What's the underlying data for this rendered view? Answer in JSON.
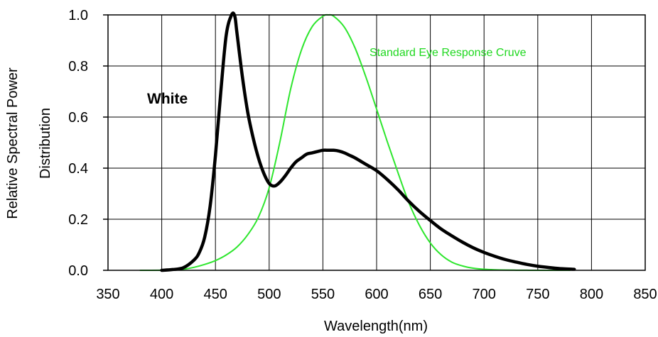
{
  "chart_data": {
    "type": "line",
    "xlabel": "Wavelength(nm)",
    "ylabel": [
      "Relative Spectral Power",
      "Distribution"
    ],
    "xlim": [
      350,
      850
    ],
    "ylim": [
      0.0,
      1.0
    ],
    "x_ticks": [
      "350",
      "400",
      "450",
      "500",
      "550",
      "600",
      "650",
      "700",
      "750",
      "800",
      "850"
    ],
    "y_ticks": [
      "0.0",
      "0.2",
      "0.4",
      "0.6",
      "0.8",
      "1.0"
    ],
    "grid": true,
    "annotations": {
      "white": "White",
      "eye": "Standard Eye Response Cruve"
    },
    "series": [
      {
        "key": "white",
        "color": "#000000",
        "x": [
          400,
          410,
          420,
          430,
          435,
          440,
          445,
          450,
          455,
          460,
          465,
          468,
          470,
          475,
          480,
          485,
          490,
          495,
          500,
          505,
          510,
          515,
          520,
          525,
          530,
          535,
          540,
          545,
          550,
          555,
          560,
          565,
          570,
          575,
          580,
          590,
          600,
          610,
          620,
          630,
          640,
          650,
          660,
          670,
          680,
          690,
          700,
          710,
          720,
          730,
          740,
          750,
          760,
          770,
          784
        ],
        "y": [
          0.0,
          0.003,
          0.01,
          0.04,
          0.07,
          0.13,
          0.25,
          0.45,
          0.7,
          0.92,
          1.0,
          0.995,
          0.93,
          0.76,
          0.62,
          0.52,
          0.44,
          0.38,
          0.34,
          0.33,
          0.345,
          0.37,
          0.4,
          0.425,
          0.44,
          0.455,
          0.46,
          0.465,
          0.47,
          0.47,
          0.47,
          0.467,
          0.46,
          0.45,
          0.44,
          0.415,
          0.39,
          0.355,
          0.315,
          0.27,
          0.23,
          0.195,
          0.162,
          0.135,
          0.11,
          0.088,
          0.07,
          0.055,
          0.042,
          0.032,
          0.023,
          0.016,
          0.011,
          0.007,
          0.004
        ]
      },
      {
        "key": "eye",
        "color": "#2ee62e",
        "x": [
          380,
          390,
          400,
          410,
          420,
          430,
          440,
          450,
          460,
          470,
          480,
          490,
          500,
          510,
          520,
          530,
          540,
          550,
          555,
          560,
          570,
          580,
          590,
          600,
          610,
          620,
          630,
          640,
          650,
          660,
          670,
          680,
          690,
          700,
          710,
          720,
          730,
          740,
          750,
          760,
          770,
          780
        ],
        "y": [
          0.0,
          0.0,
          0.0004,
          0.0012,
          0.004,
          0.0116,
          0.023,
          0.038,
          0.06,
          0.091,
          0.139,
          0.208,
          0.323,
          0.503,
          0.71,
          0.862,
          0.954,
          0.995,
          1.0,
          0.995,
          0.952,
          0.87,
          0.757,
          0.631,
          0.503,
          0.381,
          0.265,
          0.175,
          0.107,
          0.061,
          0.032,
          0.017,
          0.0082,
          0.0041,
          0.0021,
          0.001,
          0.0005,
          0.0002,
          0.0001,
          0.0,
          0.0,
          0.0
        ]
      }
    ]
  }
}
